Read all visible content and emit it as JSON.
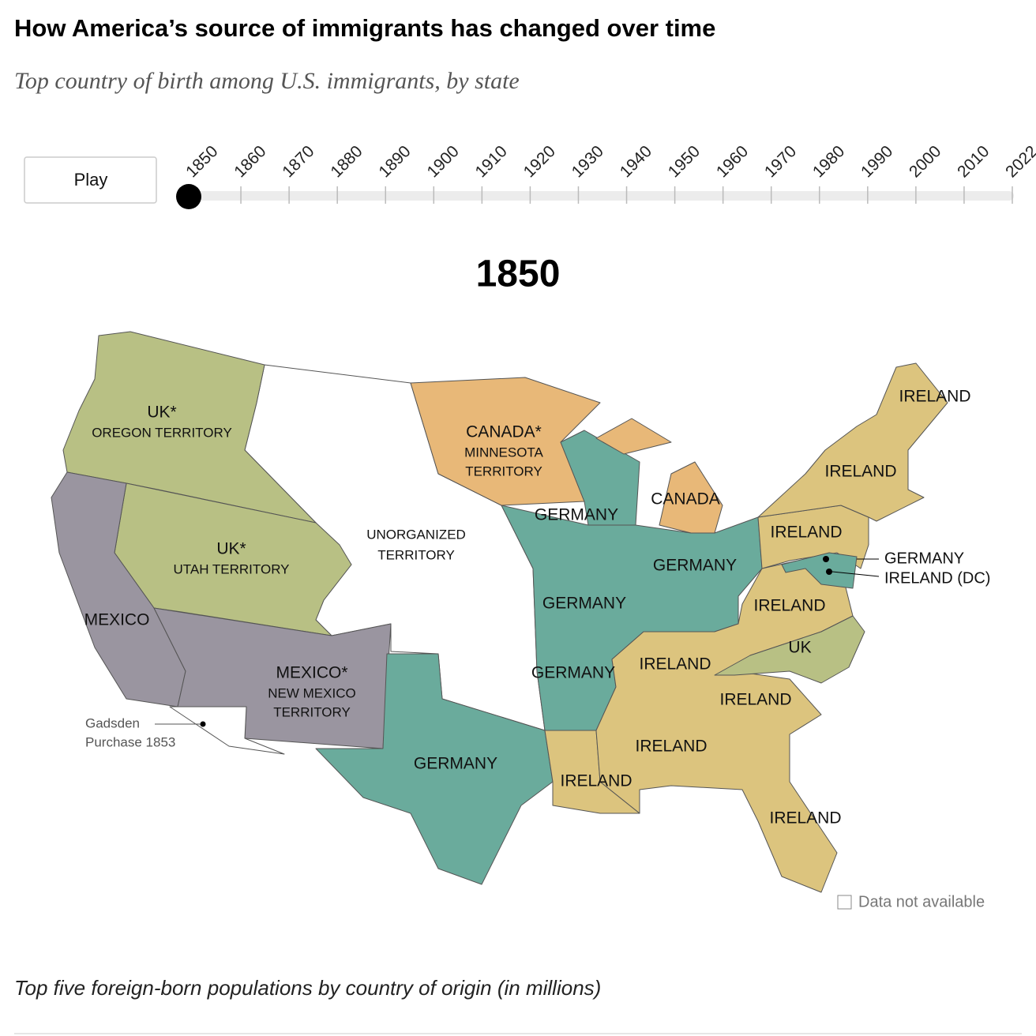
{
  "header": {
    "title": "How America’s source of immigrants has changed over time",
    "subtitle": "Top country of birth among U.S. immigrants, by state"
  },
  "controls": {
    "play": "Play",
    "years": [
      "1850",
      "1860",
      "1870",
      "1880",
      "1890",
      "1900",
      "1910",
      "1920",
      "1930",
      "1940",
      "1950",
      "1960",
      "1970",
      "1980",
      "1990",
      "2000",
      "2010",
      "2022"
    ]
  },
  "map": {
    "year_title": "1850",
    "regions": [
      {
        "lines": [
          "UK*",
          "OREGON TERRITORY"
        ]
      },
      {
        "lines": [
          "UK*",
          "UTAH TERRITORY"
        ]
      },
      {
        "lines": [
          "MEXICO"
        ]
      },
      {
        "lines": [
          "MEXICO*",
          "NEW MEXICO",
          "TERRITORY"
        ]
      },
      {
        "lines": [
          "UNORGANIZED",
          "TERRITORY"
        ]
      },
      {
        "lines": [
          "CANADA*",
          "MINNESOTA",
          "TERRITORY"
        ]
      },
      {
        "lines": [
          "GERMANY"
        ]
      },
      {
        "lines": [
          "CANADA"
        ]
      },
      {
        "lines": [
          "GERMANY"
        ]
      },
      {
        "lines": [
          "GERMANY"
        ]
      },
      {
        "lines": [
          "GERMANY"
        ]
      },
      {
        "lines": [
          "GERMANY"
        ]
      },
      {
        "lines": [
          "IRELAND"
        ]
      },
      {
        "lines": [
          "IRELAND"
        ]
      },
      {
        "lines": [
          "IRELAND"
        ]
      },
      {
        "lines": [
          "IRELAND"
        ]
      },
      {
        "lines": [
          "UK"
        ]
      },
      {
        "lines": [
          "IRELAND"
        ]
      },
      {
        "lines": [
          "IRELAND"
        ]
      },
      {
        "lines": [
          "IRELAND"
        ]
      },
      {
        "lines": [
          "IRELAND"
        ]
      },
      {
        "lines": [
          "IRELAND"
        ]
      }
    ],
    "callouts": [
      "GERMANY",
      "IRELAND (DC)"
    ],
    "gadsden": [
      "Gadsden",
      "Purchase 1853"
    ],
    "legend": "Data not available"
  },
  "footer": {
    "table_title": "Top five foreign-born populations by country of origin (in millions)"
  }
}
